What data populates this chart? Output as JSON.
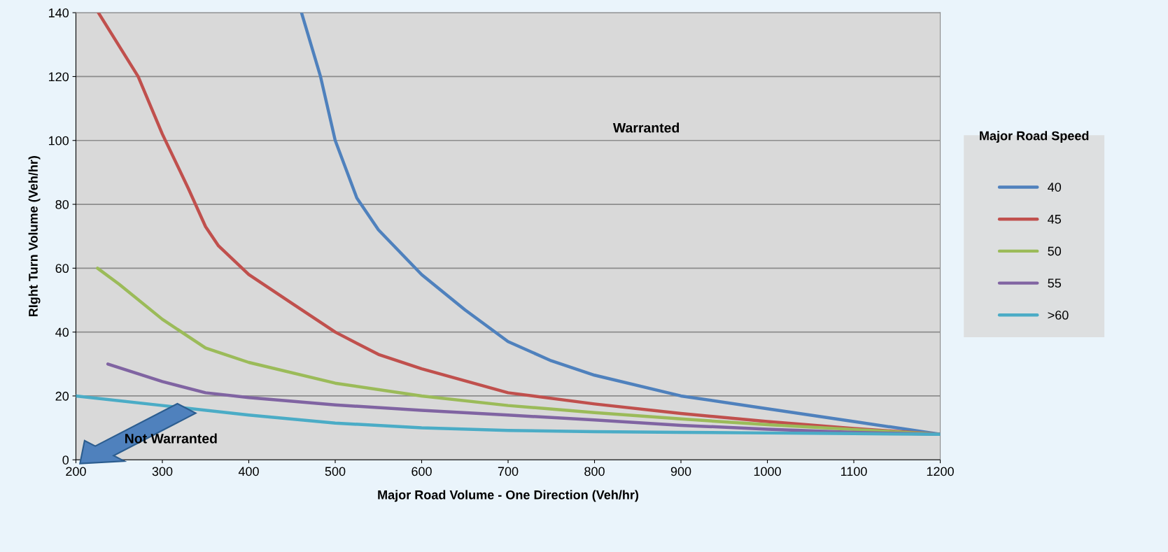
{
  "chart_data": {
    "type": "line",
    "xlabel": "Major Road Volume - One Direction (Veh/hr)",
    "ylabel": "RIght Turn Volume (Veh/hr)",
    "legend_title": "Major Road Speed",
    "legend": "right",
    "grid": "y",
    "marker": "none",
    "line_style": "solid",
    "xlim": [
      200,
      1200
    ],
    "xticks": [
      200,
      300,
      400,
      500,
      600,
      700,
      800,
      900,
      1000,
      1100,
      1200
    ],
    "ylim": [
      0,
      140
    ],
    "yticks": [
      0,
      20,
      40,
      60,
      80,
      100,
      120,
      140
    ],
    "annotations": [
      "Warranted",
      "Not Warranted"
    ],
    "series": [
      {
        "name": "40",
        "color": "#4f81bd",
        "x": [
          461,
          483,
          500,
          525,
          550,
          600,
          650,
          700,
          750,
          800,
          900,
          1000,
          1100,
          1200
        ],
        "values": [
          140,
          120,
          100,
          82,
          72,
          58,
          47,
          37,
          31,
          26.5,
          20,
          16,
          12,
          8
        ]
      },
      {
        "name": "45",
        "color": "#c0504d",
        "x": [
          226,
          272,
          300,
          330,
          350,
          365,
          400,
          450,
          500,
          550,
          600,
          700,
          800,
          900,
          1000,
          1100,
          1200
        ],
        "values": [
          140,
          120,
          102,
          85,
          73,
          67,
          58,
          49,
          40,
          33,
          28.5,
          21,
          17.5,
          14.5,
          12,
          9.8,
          8
        ]
      },
      {
        "name": "50",
        "color": "#9bbb59",
        "x": [
          225,
          250,
          300,
          350,
          400,
          500,
          600,
          700,
          800,
          900,
          1000,
          1100,
          1200
        ],
        "values": [
          60,
          55,
          44,
          35,
          30.5,
          24,
          20,
          17,
          14.8,
          12.8,
          11,
          9.5,
          8
        ]
      },
      {
        "name": "55",
        "color": "#8064a2",
        "x": [
          237,
          300,
          350,
          400,
          500,
          600,
          700,
          800,
          900,
          1000,
          1100,
          1200
        ],
        "values": [
          30,
          24.5,
          21,
          19.5,
          17.2,
          15.5,
          14,
          12.5,
          10.8,
          9.6,
          8.6,
          8
        ]
      },
      {
        "name": ">60",
        "color": "#4bacc6",
        "x": [
          200,
          300,
          400,
          500,
          600,
          700,
          800,
          900,
          1000,
          1100,
          1200
        ],
        "values": [
          20,
          17,
          14,
          11.5,
          10,
          9.2,
          8.8,
          8.6,
          8.4,
          8.2,
          8
        ]
      }
    ]
  }
}
